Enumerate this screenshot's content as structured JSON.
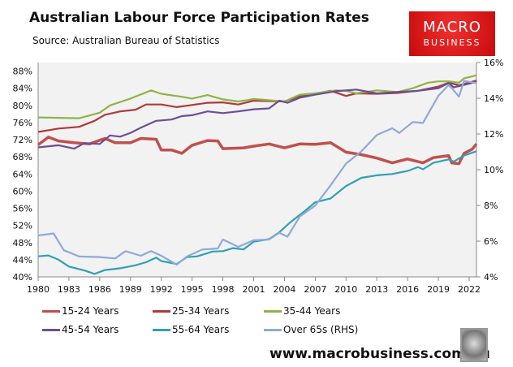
{
  "header": {
    "title": "Australian Labour Force Participation Rates",
    "source": "Source: Australian Bureau of Statistics"
  },
  "logo": {
    "line1": "MACRO",
    "line2": "BUSINESS"
  },
  "footer": {
    "url": "www.macrobusiness.com.au"
  },
  "chart_data": {
    "type": "line",
    "title": "Australian Labour Force Participation Rates",
    "xlim": [
      1980,
      2022.8
    ],
    "x_ticks": [
      "1980",
      "1983",
      "1986",
      "1989",
      "1992",
      "1995",
      "1998",
      "2001",
      "2004",
      "2007",
      "2010",
      "2013",
      "2016",
      "2019",
      "2022"
    ],
    "ylim_left": [
      40,
      90
    ],
    "y_ticks_left": [
      "40%",
      "44%",
      "48%",
      "52%",
      "56%",
      "60%",
      "64%",
      "68%",
      "72%",
      "76%",
      "80%",
      "84%",
      "88%"
    ],
    "ylim_right": [
      4,
      16
    ],
    "y_ticks_right": [
      "4%",
      "6%",
      "8%",
      "10%",
      "12%",
      "14%",
      "16%"
    ],
    "grid": false,
    "legend_position": "bottom",
    "series": [
      {
        "name": "15-24 Years",
        "color": "#c0504d",
        "axis": "left",
        "points": [
          [
            1980,
            70.8
          ],
          [
            1981,
            72.6
          ],
          [
            1982,
            71.7
          ],
          [
            1983.5,
            71.3
          ],
          [
            1985,
            71
          ],
          [
            1986.5,
            72.3
          ],
          [
            1987.5,
            71.3
          ],
          [
            1989,
            71.3
          ],
          [
            1990,
            72.3
          ],
          [
            1991.5,
            72.1
          ],
          [
            1992,
            69.6
          ],
          [
            1993,
            69.6
          ],
          [
            1994,
            68.8
          ],
          [
            1995,
            70.7
          ],
          [
            1996.5,
            71.8
          ],
          [
            1997.5,
            71.7
          ],
          [
            1998,
            69.9
          ],
          [
            2000,
            70.1
          ],
          [
            2001,
            70.5
          ],
          [
            2002.5,
            71
          ],
          [
            2004,
            70.1
          ],
          [
            2005.5,
            71
          ],
          [
            2007,
            70.9
          ],
          [
            2008.5,
            71.3
          ],
          [
            2010,
            69.1
          ],
          [
            2011.5,
            68.5
          ],
          [
            2013,
            67.7
          ],
          [
            2014.5,
            66.6
          ],
          [
            2016,
            67.5
          ],
          [
            2017.5,
            66.6
          ],
          [
            2018.5,
            67.8
          ],
          [
            2020,
            68.3
          ],
          [
            2020.3,
            66.6
          ],
          [
            2021,
            66.4
          ],
          [
            2021.5,
            68.8
          ],
          [
            2022.3,
            69.8
          ],
          [
            2022.7,
            71
          ]
        ]
      },
      {
        "name": "25-34 Years",
        "color": "#b03a3a",
        "axis": "left",
        "points": [
          [
            1980,
            73.8
          ],
          [
            1982,
            74.6
          ],
          [
            1984,
            75
          ],
          [
            1985.5,
            76.4
          ],
          [
            1986.5,
            77.8
          ],
          [
            1988,
            78.6
          ],
          [
            1989.5,
            79
          ],
          [
            1990.5,
            80.2
          ],
          [
            1992,
            80.2
          ],
          [
            1993.5,
            79.6
          ],
          [
            1995,
            80.1
          ],
          [
            1996.5,
            80.6
          ],
          [
            1998,
            80.7
          ],
          [
            1999.5,
            80.2
          ],
          [
            2001,
            81.1
          ],
          [
            2004,
            80.9
          ],
          [
            2005.5,
            82.1
          ],
          [
            2007,
            82.7
          ],
          [
            2008.5,
            83.4
          ],
          [
            2010,
            82.2
          ],
          [
            2011,
            82.8
          ],
          [
            2013,
            82.7
          ],
          [
            2015,
            82.9
          ],
          [
            2017,
            83.4
          ],
          [
            2019,
            84.4
          ],
          [
            2020,
            85.3
          ],
          [
            2021,
            84.7
          ],
          [
            2022.7,
            85.8
          ]
        ]
      },
      {
        "name": "35-44 Years",
        "color": "#8fb34a",
        "axis": "left",
        "points": [
          [
            1980,
            77.2
          ],
          [
            1984,
            77
          ],
          [
            1986,
            78.3
          ],
          [
            1987,
            80
          ],
          [
            1989,
            81.6
          ],
          [
            1991,
            83.5
          ],
          [
            1992,
            82.7
          ],
          [
            1994,
            82
          ],
          [
            1995,
            81.6
          ],
          [
            1996.5,
            82.4
          ],
          [
            1998,
            81.4
          ],
          [
            1999.5,
            80.9
          ],
          [
            2001,
            81.5
          ],
          [
            2004,
            80.9
          ],
          [
            2005.5,
            82.5
          ],
          [
            2007,
            82.8
          ],
          [
            2009,
            83.5
          ],
          [
            2010,
            83.4
          ],
          [
            2011,
            82.8
          ],
          [
            2013,
            83.5
          ],
          [
            2015,
            83.1
          ],
          [
            2016.5,
            84
          ],
          [
            2018,
            85.3
          ],
          [
            2019,
            85.6
          ],
          [
            2020,
            85.6
          ],
          [
            2021,
            85.3
          ],
          [
            2021.5,
            86.3
          ],
          [
            2022.7,
            87
          ]
        ]
      },
      {
        "name": "45-54 Years",
        "color": "#6a4f96",
        "axis": "left",
        "points": [
          [
            1980,
            70.2
          ],
          [
            1982,
            70.7
          ],
          [
            1983.5,
            69.9
          ],
          [
            1984.5,
            71.2
          ],
          [
            1986,
            71
          ],
          [
            1987,
            73
          ],
          [
            1988,
            72.7
          ],
          [
            1989,
            73.6
          ],
          [
            1990,
            74.8
          ],
          [
            1991.5,
            76.4
          ],
          [
            1993,
            76.7
          ],
          [
            1994,
            77.5
          ],
          [
            1995,
            77.7
          ],
          [
            1996.5,
            78.6
          ],
          [
            1998,
            78.2
          ],
          [
            1999.5,
            78.6
          ],
          [
            2001,
            79.1
          ],
          [
            2002.5,
            79.3
          ],
          [
            2003.5,
            81.1
          ],
          [
            2004.3,
            80.6
          ],
          [
            2005.5,
            81.8
          ],
          [
            2007,
            82.5
          ],
          [
            2009,
            83.3
          ],
          [
            2011,
            83.7
          ],
          [
            2013,
            82.8
          ],
          [
            2015,
            83.1
          ],
          [
            2017,
            83.4
          ],
          [
            2019,
            84
          ],
          [
            2020,
            85.2
          ],
          [
            2020.5,
            84.2
          ],
          [
            2021.5,
            84.8
          ],
          [
            2022.7,
            85.5
          ]
        ]
      },
      {
        "name": "55-64 Years",
        "color": "#31a0b4",
        "axis": "left",
        "points": [
          [
            1980,
            44.8
          ],
          [
            1981,
            45
          ],
          [
            1982,
            44
          ],
          [
            1983,
            42.4
          ],
          [
            1984.5,
            41.5
          ],
          [
            1985.5,
            40.7
          ],
          [
            1986.5,
            41.6
          ],
          [
            1988,
            42
          ],
          [
            1989.5,
            42.7
          ],
          [
            1990.5,
            43.4
          ],
          [
            1991.5,
            44.5
          ],
          [
            1992,
            43.7
          ],
          [
            1993.5,
            43
          ],
          [
            1994.5,
            44.6
          ],
          [
            1995.5,
            44.8
          ],
          [
            1997,
            45.9
          ],
          [
            1998,
            46
          ],
          [
            1999,
            46.7
          ],
          [
            2000,
            46.4
          ],
          [
            2001,
            48.2
          ],
          [
            2002.5,
            48.8
          ],
          [
            2003.5,
            50.4
          ],
          [
            2004.5,
            52.6
          ],
          [
            2006,
            55.4
          ],
          [
            2007,
            57.4
          ],
          [
            2008.5,
            58.3
          ],
          [
            2010,
            61.2
          ],
          [
            2011.5,
            63.1
          ],
          [
            2013,
            63.7
          ],
          [
            2014.5,
            64
          ],
          [
            2016,
            64.7
          ],
          [
            2017,
            65.6
          ],
          [
            2017.5,
            65.1
          ],
          [
            2018.5,
            66.6
          ],
          [
            2020,
            67.4
          ],
          [
            2020.5,
            66.9
          ],
          [
            2021.5,
            68.3
          ],
          [
            2022.7,
            69.3
          ]
        ]
      },
      {
        "name": "Over 65s (RHS)",
        "color": "#8eaad8",
        "axis": "right",
        "points": [
          [
            1980,
            6.32
          ],
          [
            1981.5,
            6.43
          ],
          [
            1982.5,
            5.49
          ],
          [
            1984,
            5.14
          ],
          [
            1986,
            5.11
          ],
          [
            1987.5,
            5.03
          ],
          [
            1988.5,
            5.44
          ],
          [
            1990,
            5.18
          ],
          [
            1991,
            5.44
          ],
          [
            1992,
            5.18
          ],
          [
            1993.5,
            4.68
          ],
          [
            1994.5,
            5.14
          ],
          [
            1996,
            5.53
          ],
          [
            1997.5,
            5.59
          ],
          [
            1998,
            6.09
          ],
          [
            1999.5,
            5.68
          ],
          [
            2001,
            6.05
          ],
          [
            2002.5,
            6.09
          ],
          [
            2003.5,
            6.47
          ],
          [
            2004.3,
            6.25
          ],
          [
            2005.5,
            7.38
          ],
          [
            2007,
            7.99
          ],
          [
            2008.5,
            9.13
          ],
          [
            2010,
            10.34
          ],
          [
            2011.5,
            11.03
          ],
          [
            2013,
            11.94
          ],
          [
            2014.5,
            12.32
          ],
          [
            2015.2,
            12.06
          ],
          [
            2016.5,
            12.67
          ],
          [
            2017.5,
            12.62
          ],
          [
            2019,
            14.14
          ],
          [
            2020,
            14.74
          ],
          [
            2020.5,
            14.44
          ],
          [
            2021,
            14.09
          ],
          [
            2021.5,
            14.97
          ],
          [
            2022.7,
            14.85
          ]
        ]
      }
    ]
  }
}
